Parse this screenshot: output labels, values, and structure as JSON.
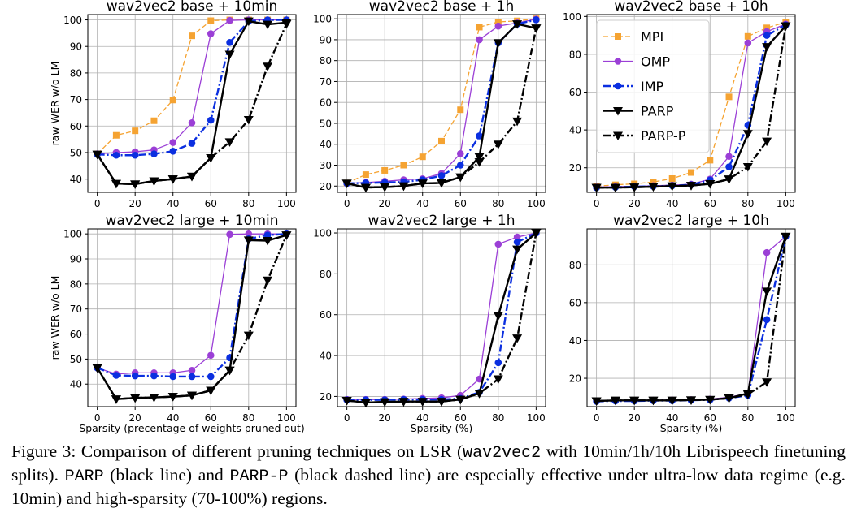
{
  "chart_data": {
    "type": "line",
    "legend": {
      "placement": "upper-left of top-right panel",
      "entries": [
        "MPI",
        "OMP",
        "IMP",
        "PARP",
        "PARP-P"
      ]
    },
    "styles": {
      "MPI": {
        "color": "#f5a332",
        "dash": "dashed",
        "marker": "square",
        "width": 1.3
      },
      "OMP": {
        "color": "#9b3fd6",
        "dash": "solid",
        "marker": "circle",
        "width": 1.3
      },
      "IMP": {
        "color": "#0b2fe0",
        "dash": "dashdot",
        "marker": "circle",
        "width": 2.4
      },
      "PARP": {
        "color": "#000000",
        "dash": "solid",
        "marker": "triangle",
        "width": 2.4
      },
      "PARP-P": {
        "color": "#000000",
        "dash": "dashdot",
        "marker": "triangle",
        "width": 2.4
      }
    },
    "x": [
      0,
      10,
      20,
      30,
      40,
      50,
      60,
      70,
      80,
      90,
      100
    ],
    "xticks": [
      0,
      20,
      40,
      60,
      80,
      100
    ],
    "grid": true,
    "panels": [
      {
        "title": "wav2vec2 base + 10min",
        "ylabel": "raw WER w/o LM",
        "xlabel": "",
        "ylim": [
          35,
          102
        ],
        "yticks": [
          40,
          50,
          60,
          70,
          80,
          90,
          100
        ],
        "series": [
          {
            "name": "MPI",
            "values": [
              49.5,
              56.5,
              58.2,
              62,
              69.8,
              94,
              99.7,
              100,
              100,
              100,
              100
            ]
          },
          {
            "name": "OMP",
            "values": [
              49.5,
              50,
              50.3,
              51,
              53.8,
              61.2,
              94.8,
              99.8,
              100,
              100,
              100
            ]
          },
          {
            "name": "IMP",
            "values": [
              49.3,
              49,
              49,
              49.5,
              50.5,
              53.5,
              62.2,
              91.5,
              99.5,
              100,
              100
            ]
          },
          {
            "name": "PARP",
            "values": [
              49.3,
              38.3,
              38.1,
              39.3,
              40,
              41,
              48,
              87,
              99.5,
              98.3,
              99
            ]
          },
          {
            "name": "PARP-P",
            "values": [
              49.3,
              38.3,
              38.1,
              39.3,
              40,
              41,
              48,
              54,
              62.4,
              82.5,
              98.5
            ]
          }
        ]
      },
      {
        "title": "wav2vec2 base + 1h",
        "ylabel": "",
        "xlabel": "",
        "ylim": [
          17,
          102
        ],
        "yticks": [
          20,
          30,
          40,
          50,
          60,
          70,
          80,
          90,
          100
        ],
        "series": [
          {
            "name": "MPI",
            "values": [
              21.5,
              25.5,
              27.5,
              30,
              34,
              41.5,
              56.5,
              96,
              98.5,
              99,
              100
            ]
          },
          {
            "name": "OMP",
            "values": [
              21.3,
              21.7,
              22.3,
              23,
              23.5,
              26,
              35.5,
              90,
              96.5,
              98,
              99.8
            ]
          },
          {
            "name": "IMP",
            "values": [
              21.3,
              21.5,
              21.7,
              22,
              23,
              25,
              30,
              44,
              88.5,
              97.5,
              99.5
            ]
          },
          {
            "name": "PARP",
            "values": [
              21.3,
              19.3,
              19.5,
              20,
              21.3,
              21.5,
              24.3,
              34,
              88.5,
              97.5,
              95.5
            ]
          },
          {
            "name": "PARP-P",
            "values": [
              21.3,
              19.3,
              19.5,
              20,
              21.3,
              21.5,
              24.3,
              31.5,
              40,
              51,
              95.5
            ]
          }
        ]
      },
      {
        "title": "wav2vec2 base + 10h",
        "ylabel": "",
        "xlabel": "",
        "ylim": [
          7,
          101
        ],
        "yticks": [
          20,
          40,
          60,
          80,
          100
        ],
        "series": [
          {
            "name": "MPI",
            "values": [
              10.2,
              11,
              11.5,
              12.5,
              14.3,
              17.5,
              24,
              57.5,
              89.5,
              94,
              97
            ]
          },
          {
            "name": "OMP",
            "values": [
              9.8,
              10,
              10.2,
              10.5,
              10.8,
              11.3,
              14,
              26,
              86,
              92,
              96
            ]
          },
          {
            "name": "IMP",
            "values": [
              9.5,
              9.7,
              10,
              10.2,
              10.5,
              11,
              13.5,
              20.5,
              42.5,
              90,
              95.5
            ]
          },
          {
            "name": "PARP",
            "values": [
              9.5,
              9.5,
              9.7,
              10,
              10.3,
              10.6,
              11.5,
              14,
              38,
              84,
              95
            ]
          },
          {
            "name": "PARP-P",
            "values": [
              9.5,
              9.5,
              9.7,
              10,
              10.3,
              10.6,
              11.5,
              14,
              20.5,
              34,
              95
            ]
          }
        ]
      },
      {
        "title": "wav2vec2 large + 10min",
        "ylabel": "raw WER w/o LM",
        "xlabel": "Sparsity (precentage of weights pruned out)",
        "ylim": [
          31,
          102
        ],
        "yticks": [
          40,
          50,
          60,
          70,
          80,
          90,
          100
        ],
        "series": [
          {
            "name": "MPI",
            "values": []
          },
          {
            "name": "OMP",
            "values": [
              46.5,
              44,
              44.5,
              44.5,
              44.5,
              45.5,
              51.5,
              99.8,
              100,
              100,
              100
            ]
          },
          {
            "name": "IMP",
            "values": [
              46.5,
              43.5,
              43.3,
              43.3,
              43,
              43,
              43,
              50.5,
              98,
              99.5,
              100
            ]
          },
          {
            "name": "PARP",
            "values": [
              46.5,
              34,
              34.5,
              34.7,
              35,
              35.5,
              37.5,
              45.5,
              97.5,
              97.3,
              99.5
            ]
          },
          {
            "name": "PARP-P",
            "values": [
              46.5,
              34,
              34.5,
              34.7,
              35,
              35.5,
              37.5,
              45.5,
              59.5,
              81.5,
              99.5
            ]
          }
        ]
      },
      {
        "title": "wav2vec2 large + 1h",
        "ylabel": "",
        "xlabel": "Sparsity (%)",
        "ylim": [
          15,
          102
        ],
        "yticks": [
          20,
          40,
          60,
          80,
          100
        ],
        "series": [
          {
            "name": "MPI",
            "values": []
          },
          {
            "name": "OMP",
            "values": [
              18.5,
              18.5,
              18.5,
              18.7,
              19,
              19.3,
              20.5,
              28.5,
              94.5,
              98,
              100
            ]
          },
          {
            "name": "IMP",
            "values": [
              18.3,
              18.3,
              18.3,
              18.5,
              18.5,
              18.5,
              19,
              22,
              36.5,
              95.5,
              100
            ]
          },
          {
            "name": "PARP",
            "values": [
              18,
              17,
              17.3,
              17.5,
              17.5,
              17.5,
              18.5,
              21.5,
              59.5,
              92,
              100
            ]
          },
          {
            "name": "PARP-P",
            "values": [
              18,
              17,
              17.3,
              17.5,
              17.5,
              17.5,
              18.5,
              21.5,
              28.5,
              48.5,
              100
            ]
          }
        ]
      },
      {
        "title": "wav2vec2 large + 10h",
        "ylabel": "",
        "xlabel": "Sparsity (%)",
        "ylim": [
          5,
          99
        ],
        "yticks": [
          20,
          40,
          60,
          80
        ],
        "series": [
          {
            "name": "MPI",
            "values": []
          },
          {
            "name": "OMP",
            "values": [
              8,
              8.2,
              8.3,
              8.4,
              8.5,
              8.7,
              9,
              10,
              12,
              86.5,
              95
            ]
          },
          {
            "name": "IMP",
            "values": [
              7.8,
              8,
              8,
              8.2,
              8.2,
              8.4,
              8.6,
              9.5,
              11,
              51,
              95
            ]
          },
          {
            "name": "PARP",
            "values": [
              8,
              8.3,
              8.3,
              8.3,
              8.3,
              8.5,
              8.7,
              9.5,
              12,
              66,
              95
            ]
          },
          {
            "name": "PARP-P",
            "values": [
              8,
              8.3,
              8.3,
              8.3,
              8.3,
              8.5,
              8.7,
              9.5,
              11.5,
              18,
              95
            ]
          }
        ]
      }
    ]
  },
  "caption": {
    "part1": "Figure 3:  Comparison of different pruning techniques on LSR (",
    "mono1": "wav2vec2",
    "part2": " with 10min/1h/10h Librispeech finetuning splits).  ",
    "mono2": "PARP",
    "part3": " (black line) and ",
    "mono3": "PARP-P",
    "part4": " (black dashed line) are especially effective under ultra-low data regime (e.g. 10min) and high-sparsity (70-100%) regions."
  }
}
